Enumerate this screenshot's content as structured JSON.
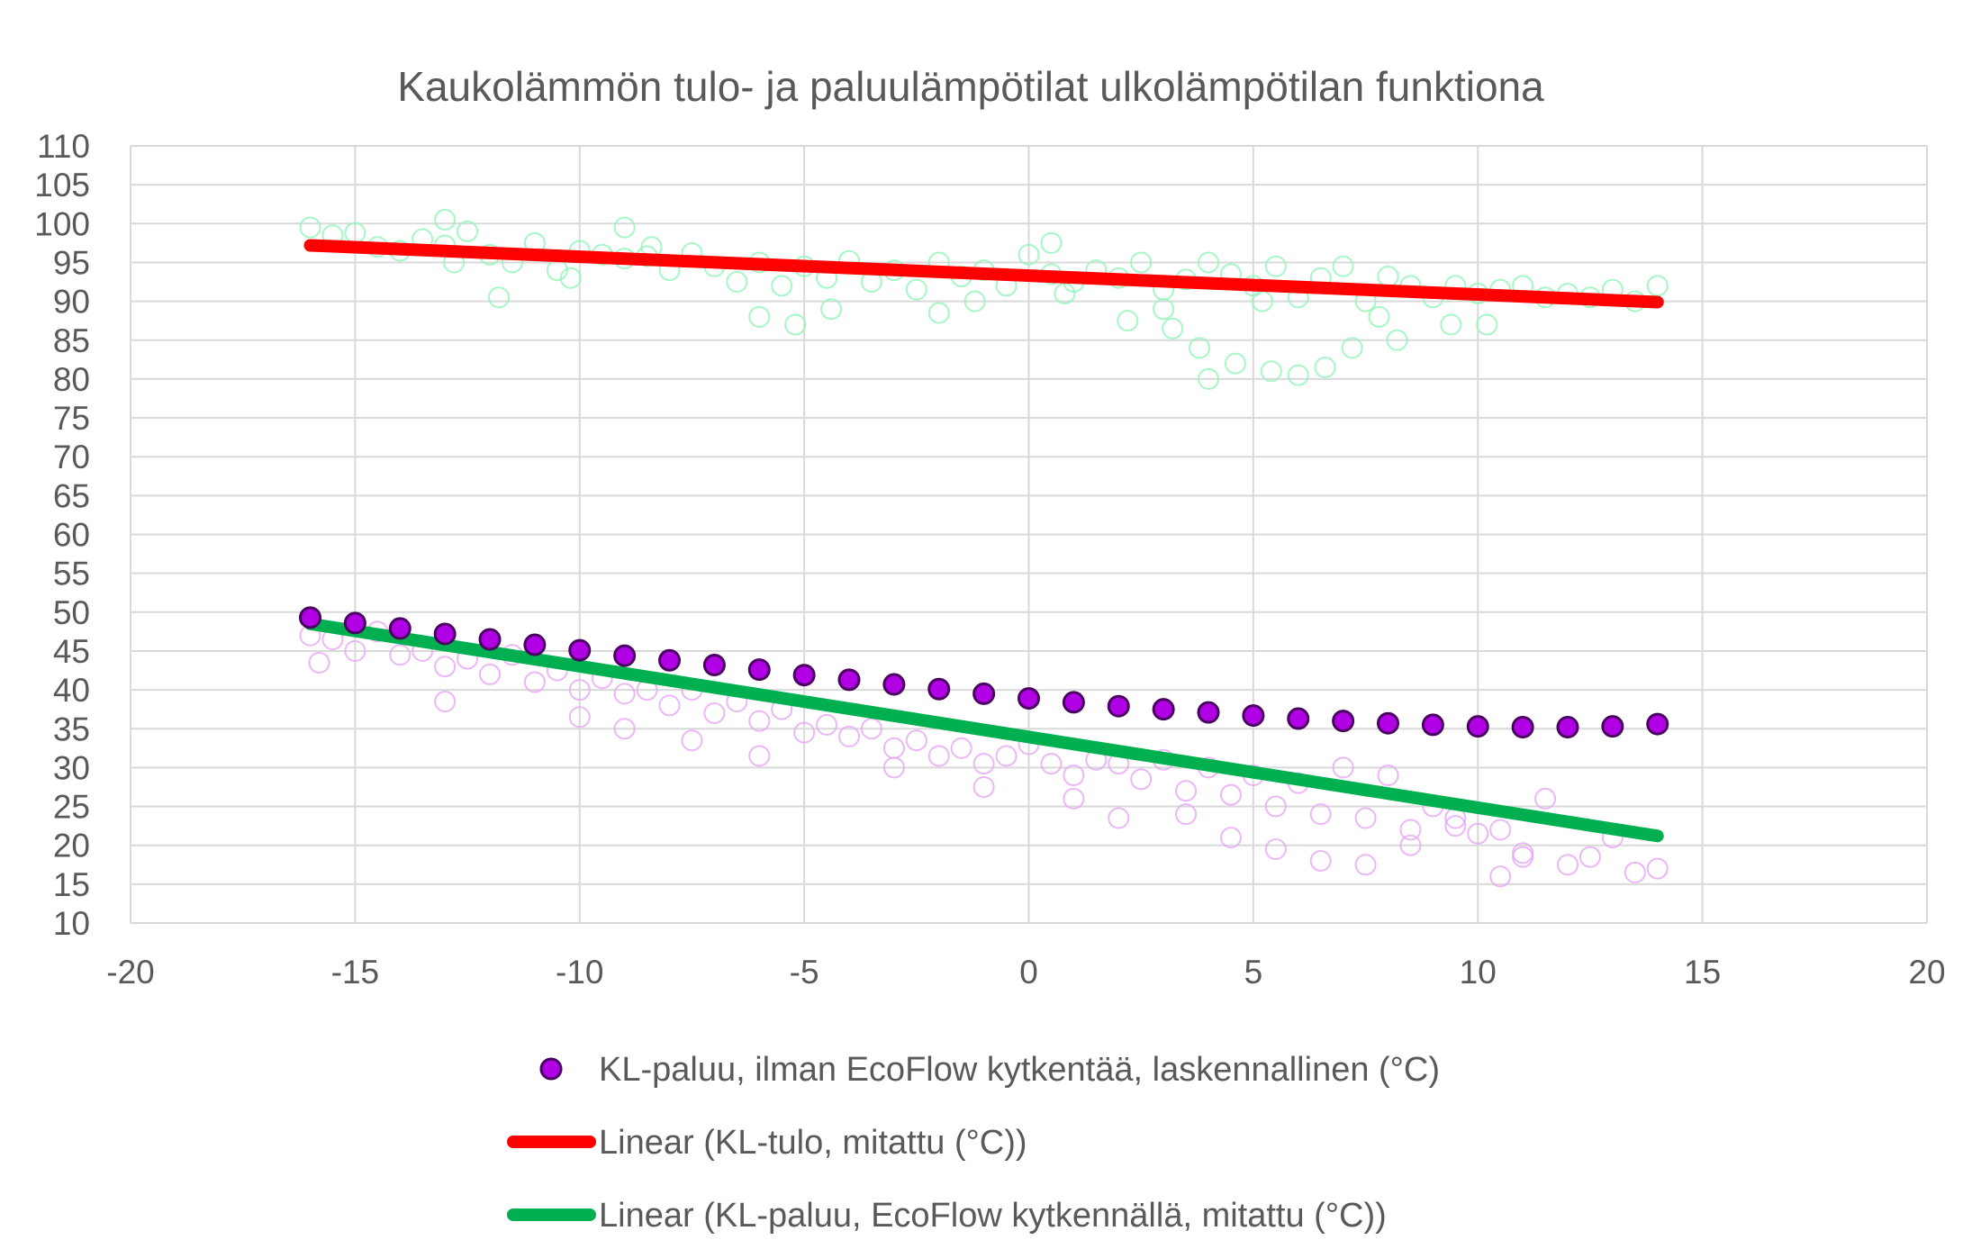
{
  "chart_data": {
    "type": "scatter",
    "title": "Kaukolämmön tulo- ja paluulämpötilat ulkolämpötilan funktiona",
    "xlabel": "",
    "ylabel": "",
    "xlim": [
      -20,
      20
    ],
    "ylim": [
      10,
      110
    ],
    "x_ticks": [
      "-20",
      "-15",
      "-10",
      "-5",
      "0",
      "5",
      "10",
      "15",
      "20"
    ],
    "y_ticks": [
      "10",
      "15",
      "20",
      "25",
      "30",
      "35",
      "40",
      "45",
      "50",
      "55",
      "60",
      "65",
      "70",
      "75",
      "80",
      "85",
      "90",
      "95",
      "100",
      "105",
      "110"
    ],
    "grid": true,
    "legend_position": "bottom",
    "colors": {
      "supply_measured": "#8ef5b6",
      "return_measured": "#e6a5f5",
      "calc_marker_fill": "#b200e6",
      "calc_marker_edge": "#4a0060",
      "supply_trend": "#ff0000",
      "return_trend": "#00b050",
      "grid": "#d9d9d9",
      "text": "#595959"
    },
    "series": [
      {
        "name": "KL-tulo, mitattu (°C)",
        "kind": "scatter-open",
        "in_legend": false,
        "color": "#8ef5b6",
        "x": [
          -16.0,
          -15.5,
          -15.0,
          -14.5,
          -14.0,
          -13.5,
          -13.0,
          -12.5,
          -12.0,
          -11.5,
          -11.0,
          -10.5,
          -10.0,
          -9.5,
          -9.0,
          -8.5,
          -8.0,
          -7.5,
          -7.0,
          -6.5,
          -6.0,
          -5.5,
          -5.0,
          -4.5,
          -4.0,
          -3.5,
          -3.0,
          -2.5,
          -2.0,
          -1.5,
          -1.0,
          -0.5,
          0.0,
          0.5,
          1.0,
          1.5,
          2.0,
          2.5,
          3.0,
          3.5,
          4.0,
          4.5,
          5.0,
          5.5,
          6.0,
          6.5,
          7.0,
          7.5,
          8.0,
          8.5,
          9.0,
          9.5,
          10.0,
          10.5,
          11.0,
          11.5,
          12.0,
          12.5,
          13.0,
          13.5,
          14.0,
          -13.0,
          -11.8,
          -9.0,
          -6.0,
          -5.2,
          -2.0,
          0.8,
          2.2,
          3.2,
          3.8,
          4.0,
          4.6,
          5.4,
          6.0,
          6.6,
          7.2,
          8.2,
          9.4,
          -12.8,
          -10.2,
          -8.4,
          -4.4,
          -1.2,
          0.5,
          3.0,
          5.2,
          7.8,
          10.2
        ],
        "y": [
          99.5,
          98.5,
          98.8,
          97.0,
          96.5,
          98.0,
          97.2,
          99.0,
          96.0,
          95.0,
          97.5,
          94.0,
          96.5,
          96.0,
          95.5,
          95.8,
          94.0,
          96.2,
          94.5,
          92.5,
          95.0,
          92.0,
          94.5,
          93.0,
          95.2,
          92.5,
          94.0,
          91.5,
          95.0,
          93.2,
          94.0,
          92.0,
          96.0,
          93.5,
          92.5,
          94.0,
          93.0,
          95.0,
          91.5,
          92.8,
          95.0,
          93.5,
          92.0,
          94.5,
          90.5,
          93.0,
          94.5,
          90.0,
          93.2,
          92.0,
          90.5,
          92.0,
          91.0,
          91.5,
          92.0,
          90.5,
          91.0,
          90.5,
          91.5,
          90.0,
          92.0,
          100.5,
          90.5,
          99.5,
          88.0,
          87.0,
          88.5,
          91.0,
          87.5,
          86.5,
          84.0,
          80.0,
          82.0,
          81.0,
          80.5,
          81.5,
          84.0,
          85.0,
          87.0,
          95.0,
          93.0,
          97.0,
          89.0,
          90.0,
          97.5,
          89.0,
          90.0,
          88.0,
          87.0
        ]
      },
      {
        "name": "KL-paluu, EcoFlow kytkennällä, mitattu (°C)",
        "kind": "scatter-open",
        "in_legend": false,
        "color": "#e6a5f5",
        "x": [
          -16.0,
          -15.5,
          -15.0,
          -14.5,
          -14.0,
          -13.5,
          -13.0,
          -12.5,
          -12.0,
          -11.5,
          -11.0,
          -10.5,
          -10.0,
          -9.5,
          -9.0,
          -8.5,
          -8.0,
          -7.5,
          -7.0,
          -6.5,
          -6.0,
          -5.5,
          -5.0,
          -4.5,
          -4.0,
          -3.5,
          -3.0,
          -2.5,
          -2.0,
          -1.5,
          -1.0,
          -0.5,
          0.0,
          0.5,
          1.0,
          1.5,
          2.0,
          2.5,
          3.0,
          3.5,
          4.0,
          4.5,
          5.0,
          5.5,
          6.0,
          6.5,
          7.0,
          7.5,
          8.0,
          8.5,
          9.0,
          9.5,
          10.0,
          10.5,
          11.0,
          11.5,
          12.0,
          12.5,
          13.0,
          13.5,
          14.0,
          -15.8,
          -13.0,
          -10.0,
          -9.0,
          -7.5,
          -6.0,
          -3.0,
          -1.0,
          1.0,
          2.0,
          3.5,
          4.5,
          5.5,
          6.5,
          7.5,
          8.5,
          9.5,
          10.5,
          11.0
        ],
        "y": [
          47.0,
          46.5,
          45.0,
          47.5,
          44.5,
          45.0,
          43.0,
          44.0,
          42.0,
          44.5,
          41.0,
          42.5,
          40.0,
          41.5,
          39.5,
          40.0,
          38.0,
          40.0,
          37.0,
          38.5,
          36.0,
          37.5,
          34.5,
          35.5,
          34.0,
          35.0,
          32.5,
          33.5,
          31.5,
          32.5,
          30.5,
          31.5,
          33.0,
          30.5,
          29.0,
          31.0,
          30.5,
          28.5,
          31.0,
          27.0,
          30.0,
          26.5,
          29.0,
          25.0,
          28.0,
          24.0,
          30.0,
          23.5,
          29.0,
          22.0,
          25.0,
          23.5,
          21.5,
          22.0,
          19.0,
          26.0,
          17.5,
          18.5,
          21.0,
          16.5,
          17.0,
          43.5,
          38.5,
          36.5,
          35.0,
          33.5,
          31.5,
          30.0,
          27.5,
          26.0,
          23.5,
          24.0,
          21.0,
          19.5,
          18.0,
          17.5,
          20.0,
          22.5,
          16.0,
          18.5
        ]
      },
      {
        "name": "KL-paluu, ilman EcoFlow kytkentää, laskennallinen (°C)",
        "kind": "scatter-filled",
        "in_legend": true,
        "x": [
          -16,
          -15,
          -14,
          -13,
          -12,
          -11,
          -10,
          -9,
          -8,
          -7,
          -6,
          -5,
          -4,
          -3,
          -2,
          -1,
          0,
          1,
          2,
          3,
          4,
          5,
          6,
          7,
          8,
          9,
          10,
          11,
          12,
          13,
          14
        ],
        "y": [
          49.3,
          48.6,
          47.9,
          47.2,
          46.5,
          45.8,
          45.1,
          44.4,
          43.8,
          43.2,
          42.6,
          41.9,
          41.3,
          40.7,
          40.1,
          39.5,
          38.9,
          38.4,
          37.9,
          37.5,
          37.1,
          36.7,
          36.3,
          36.0,
          35.7,
          35.5,
          35.3,
          35.2,
          35.2,
          35.3,
          35.6
        ]
      },
      {
        "name": "Linear (KL-tulo, mitattu (°C))",
        "kind": "trendline",
        "in_legend": true,
        "color": "#ff0000",
        "x": [
          -16,
          14
        ],
        "y": [
          97.2,
          89.9
        ]
      },
      {
        "name": "Linear (KL-paluu, EcoFlow kytkennällä, mitattu (°C))",
        "kind": "trendline",
        "in_legend": true,
        "color": "#00b050",
        "x": [
          -16,
          14
        ],
        "y": [
          48.5,
          21.2
        ]
      }
    ],
    "legend": [
      {
        "label": "KL-paluu, ilman EcoFlow kytkentää, laskennallinen (°C)",
        "marker": "dot"
      },
      {
        "label": "Linear (KL-tulo, mitattu (°C))",
        "marker": "line",
        "color": "#ff0000"
      },
      {
        "label": "Linear (KL-paluu, EcoFlow kytkennällä, mitattu (°C))",
        "marker": "line",
        "color": "#00b050"
      }
    ]
  }
}
